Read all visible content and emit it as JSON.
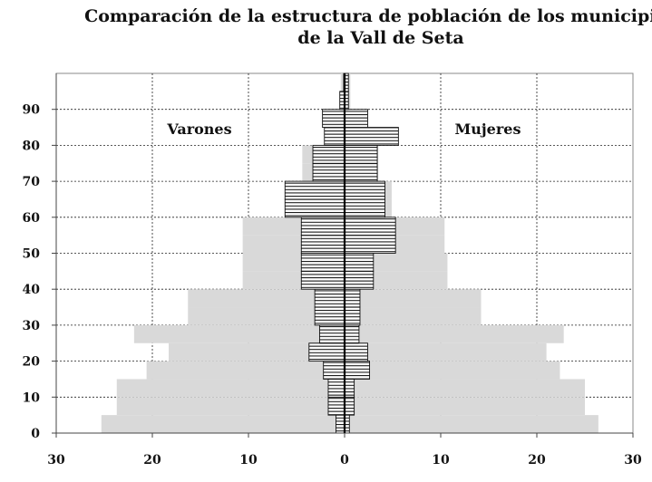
{
  "chart_data": {
    "type": "bar",
    "title_lines": [
      "Comparación de la estructura de población de los municipios",
      "de la Vall de Seta"
    ],
    "orientation": "horizontal-pyramid",
    "age_groups": [
      "0",
      "5",
      "10",
      "15",
      "20",
      "25",
      "30",
      "35",
      "40",
      "45",
      "50",
      "55",
      "60",
      "65",
      "70",
      "75",
      "80",
      "85",
      "90",
      "95"
    ],
    "series": [
      {
        "name": "Varones",
        "side": "left",
        "style": "light-gray-fill",
        "values": [
          25.3,
          23.7,
          23.7,
          20.6,
          18.3,
          21.9,
          16.3,
          16.3,
          10.6,
          10.6,
          10.6,
          10.6,
          4.4,
          4.4,
          4.4,
          4.4,
          1.1,
          1.1,
          0.4,
          0.4
        ]
      },
      {
        "name": "Mujeres",
        "side": "right",
        "style": "light-gray-fill",
        "values": [
          26.4,
          25.0,
          25.0,
          22.4,
          21.0,
          22.8,
          14.2,
          14.2,
          10.7,
          10.7,
          10.4,
          10.4,
          4.9,
          4.9,
          3.5,
          3.5,
          2.3,
          2.3,
          0.6,
          0.6
        ]
      },
      {
        "side": "left",
        "style": "hatched-dark",
        "values": [
          0.9,
          1.7,
          1.7,
          2.2,
          3.7,
          2.6,
          3.1,
          3.1,
          4.5,
          4.5,
          4.5,
          4.5,
          6.2,
          6.2,
          3.3,
          3.3,
          2.1,
          2.3,
          0.5,
          0.1
        ]
      },
      {
        "side": "right",
        "style": "hatched-dark",
        "values": [
          0.5,
          1.0,
          1.0,
          2.6,
          2.4,
          1.5,
          1.6,
          1.6,
          3.0,
          3.0,
          5.3,
          5.3,
          4.2,
          4.2,
          3.4,
          3.4,
          5.6,
          2.4,
          0.4,
          0.4
        ]
      }
    ],
    "x_ticks": [
      30,
      20,
      10,
      0,
      10,
      20,
      30
    ],
    "xlim": [
      -30,
      30
    ],
    "y_ticks": [
      0,
      10,
      20,
      30,
      40,
      50,
      60,
      70,
      80,
      90
    ],
    "ylim": [
      0,
      100
    ],
    "grid": true,
    "annotations": [
      "Varones",
      "Mujeres"
    ]
  }
}
